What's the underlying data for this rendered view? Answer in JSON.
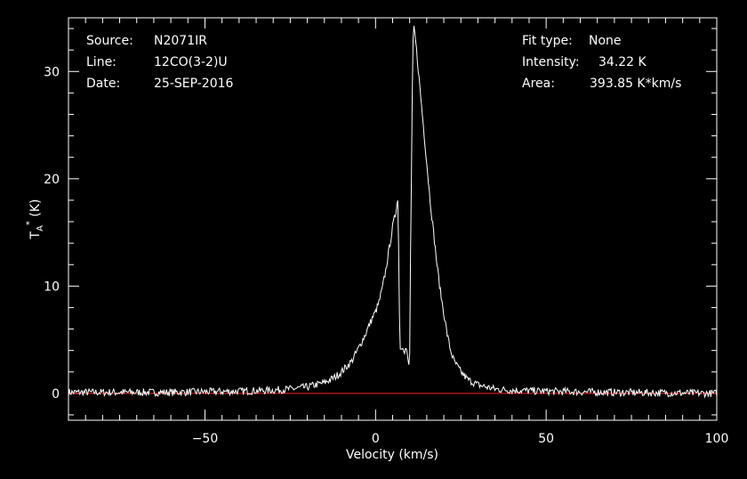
{
  "header": {
    "source_label": "Source:",
    "source_value": "N2071IR",
    "line_label": "Line:",
    "line_value": "12CO(3-2)U",
    "date_label": "Date:",
    "date_value": "25-SEP-2016",
    "fit_label": "Fit type:",
    "fit_value": "None",
    "intensity_label": "Intensity:",
    "intensity_value": "34.22 K",
    "area_label": "Area:",
    "area_value": "393.85 K*km/s"
  },
  "colors": {
    "background": "#000000",
    "spectrum": "#ffffff",
    "baseline": "#ff2020",
    "axes": "#ffffff"
  },
  "chart_data": {
    "type": "line",
    "title": "",
    "xlabel": "Velocity (km/s)",
    "ylabel": "T",
    "ylabel_sub": "A",
    "ylabel_sup": "*",
    "ylabel_unit": " (K)",
    "xlim": [
      -90,
      100
    ],
    "ylim": [
      -2.5,
      35
    ],
    "xticks": [
      -50,
      0,
      50,
      100
    ],
    "xtick_labels": [
      "−50",
      "0",
      "50",
      "100"
    ],
    "yticks": [
      0,
      10,
      20,
      30
    ],
    "ytick_labels": [
      "0",
      "10",
      "20",
      "30"
    ],
    "grid": false,
    "baseline_y": 0,
    "series": [
      {
        "points": [
          [
            -90,
            0.1
          ],
          [
            -60,
            0.1
          ],
          [
            -40,
            0.2
          ],
          [
            -30,
            0.3
          ],
          [
            -25,
            0.4
          ],
          [
            -20,
            0.6
          ],
          [
            -15,
            1.0
          ],
          [
            -12,
            1.5
          ],
          [
            -10,
            2.0
          ],
          [
            -7,
            3.0
          ],
          [
            -5,
            4.2
          ],
          [
            -3,
            5.5
          ],
          [
            -1,
            7.0
          ],
          [
            0,
            7.6
          ],
          [
            1,
            8.5
          ],
          [
            2,
            9.8
          ],
          [
            3,
            11.5
          ],
          [
            4,
            13.5
          ],
          [
            5,
            15.5
          ],
          [
            6,
            17.0
          ],
          [
            6.4,
            18.5
          ],
          [
            6.6,
            17.5
          ],
          [
            6.9,
            10.0
          ],
          [
            7.1,
            5.0
          ],
          [
            7.3,
            4.0
          ],
          [
            8,
            4.5
          ],
          [
            8.5,
            4.0
          ],
          [
            9,
            4.2
          ],
          [
            9.5,
            3.0
          ],
          [
            9.8,
            2.6
          ],
          [
            10,
            3.5
          ],
          [
            10.2,
            11.0
          ],
          [
            10.4,
            19.5
          ],
          [
            10.6,
            20.0
          ],
          [
            10.8,
            30.0
          ],
          [
            11.1,
            34.2
          ],
          [
            11.5,
            33.5
          ],
          [
            12,
            32.0
          ],
          [
            13,
            28.5
          ],
          [
            14,
            25.0
          ],
          [
            15,
            21.5
          ],
          [
            16,
            18.0
          ],
          [
            17,
            15.0
          ],
          [
            18,
            12.0
          ],
          [
            19,
            9.5
          ],
          [
            20,
            7.5
          ],
          [
            21,
            5.5
          ],
          [
            22,
            4.0
          ],
          [
            23,
            3.0
          ],
          [
            25,
            2.0
          ],
          [
            27,
            1.3
          ],
          [
            30,
            0.8
          ],
          [
            35,
            0.4
          ],
          [
            40,
            0.3
          ],
          [
            50,
            0.2
          ],
          [
            70,
            0.1
          ],
          [
            100,
            0.0
          ]
        ]
      }
    ]
  }
}
